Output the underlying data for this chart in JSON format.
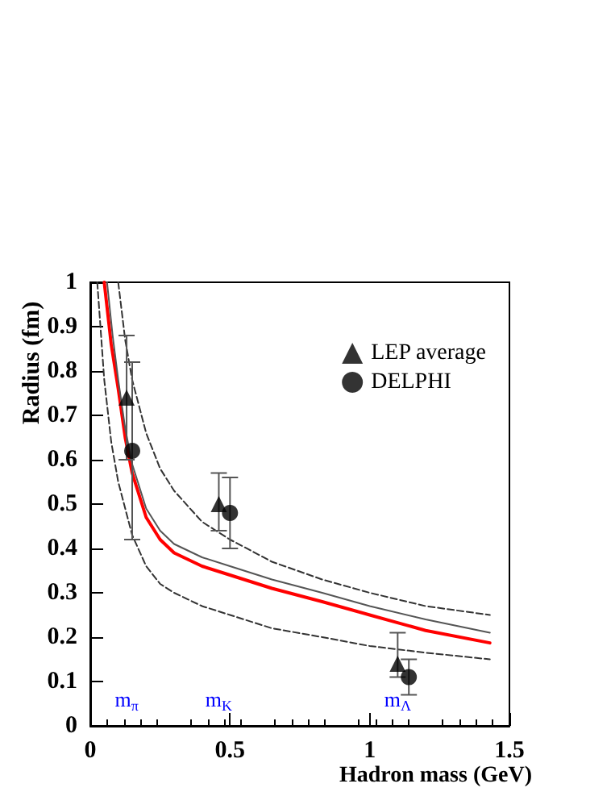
{
  "chart_data": {
    "type": "scatter",
    "xlabel": "Hadron mass (GeV)",
    "ylabel": "Radius (fm)",
    "xlim": [
      0,
      1.5
    ],
    "ylim": [
      0,
      1
    ],
    "xticks": [
      0,
      0.5,
      1,
      1.5
    ],
    "yticks": [
      0,
      0.1,
      0.2,
      0.3,
      0.4,
      0.5,
      0.6,
      0.7,
      0.8,
      0.9,
      1
    ],
    "grid": false,
    "legend": "top right",
    "series": [
      {
        "name": "LEP average",
        "marker": "triangle",
        "color": "#000000",
        "x": [
          0.13,
          0.46,
          1.1
        ],
        "values": [
          0.74,
          0.5,
          0.14
        ],
        "errors": [
          [
            0.6,
            0.88
          ],
          [
            0.44,
            0.57
          ],
          [
            0.11,
            0.21
          ]
        ]
      },
      {
        "name": "DELPHI",
        "marker": "circle",
        "color": "#000000",
        "x": [
          0.15,
          0.5,
          1.14
        ],
        "values": [
          0.62,
          0.48,
          0.11
        ],
        "errors": [
          [
            0.42,
            0.82
          ],
          [
            0.4,
            0.56
          ],
          [
            0.07,
            0.15
          ]
        ]
      },
      {
        "type": "line",
        "marker": "none",
        "line_style": "solid",
        "color": "#ff0000",
        "x": [
          0.05,
          0.075,
          0.1,
          0.125,
          0.15,
          0.2,
          0.25,
          0.3,
          0.4,
          0.5,
          0.65,
          0.83,
          1.0,
          1.2,
          1.43
        ],
        "values": [
          1.0,
          0.86,
          0.76,
          0.65,
          0.57,
          0.47,
          0.42,
          0.39,
          0.36,
          0.34,
          0.31,
          0.28,
          0.25,
          0.215,
          0.187
        ]
      },
      {
        "type": "line",
        "marker": "none",
        "line_style": "solid",
        "color": "#555555",
        "x": [
          0.06,
          0.08,
          0.1,
          0.125,
          0.15,
          0.2,
          0.25,
          0.3,
          0.4,
          0.5,
          0.65,
          0.83,
          1.0,
          1.2,
          1.43
        ],
        "values": [
          1.0,
          0.88,
          0.78,
          0.67,
          0.59,
          0.49,
          0.44,
          0.41,
          0.38,
          0.36,
          0.33,
          0.3,
          0.27,
          0.24,
          0.21
        ]
      },
      {
        "type": "line",
        "marker": "none",
        "line_style": "dashed",
        "color": "#333333",
        "x": [
          0.1,
          0.125,
          0.15,
          0.2,
          0.25,
          0.3,
          0.4,
          0.5,
          0.65,
          0.83,
          1.0,
          1.2,
          1.43
        ],
        "values": [
          1.0,
          0.87,
          0.78,
          0.66,
          0.58,
          0.53,
          0.46,
          0.42,
          0.37,
          0.33,
          0.3,
          0.27,
          0.25
        ]
      },
      {
        "type": "line",
        "marker": "none",
        "line_style": "dashed",
        "color": "#333333",
        "x": [
          0.025,
          0.05,
          0.075,
          0.1,
          0.15,
          0.2,
          0.25,
          0.3,
          0.4,
          0.5,
          0.65,
          0.83,
          1.0,
          1.2,
          1.43
        ],
        "values": [
          1.0,
          0.78,
          0.64,
          0.55,
          0.43,
          0.36,
          0.32,
          0.3,
          0.27,
          0.25,
          0.22,
          0.2,
          0.18,
          0.165,
          0.15
        ]
      }
    ],
    "annotations": [
      "m$_{π}$",
      "m$_{K}$",
      "m$_{Λ}$"
    ]
  }
}
